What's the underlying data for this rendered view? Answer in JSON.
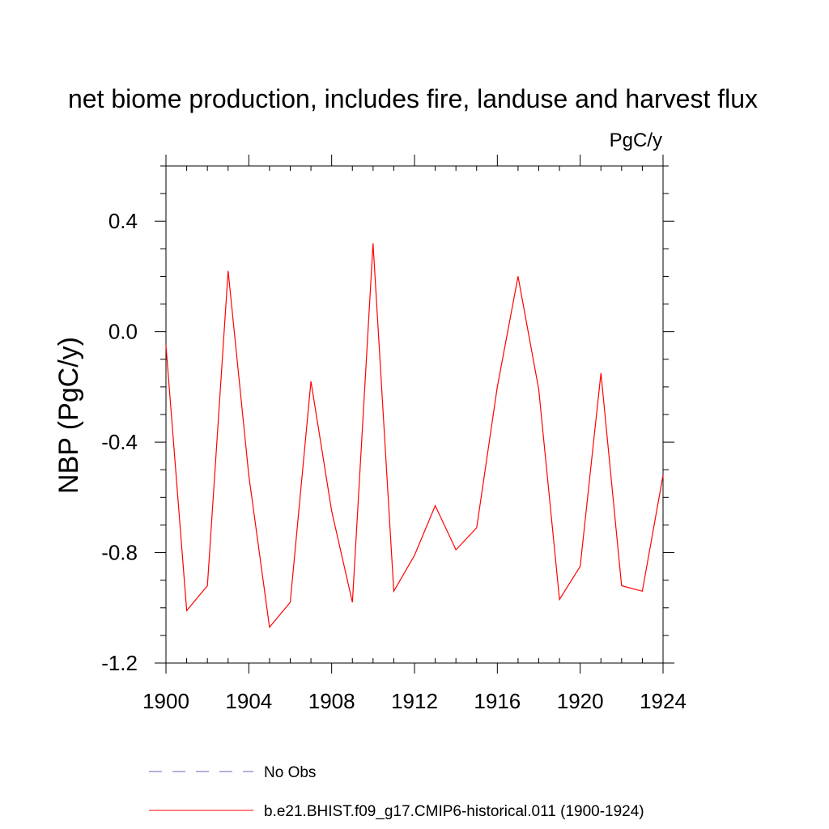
{
  "chart_data": {
    "type": "line",
    "title": "net biome production, includes fire, landuse and harvest flux",
    "units": "PgC/y",
    "ylabel": "NBP  (PgC/y)",
    "xlabel": "",
    "xlim": [
      1900,
      1924
    ],
    "ylim": [
      -1.2,
      0.6
    ],
    "x_ticks": [
      1900,
      1904,
      1908,
      1912,
      1916,
      1920,
      1924
    ],
    "x_tick_labels": [
      "1900",
      "1904",
      "1908",
      "1912",
      "1916",
      "1920",
      "1924"
    ],
    "y_ticks": [
      -1.2,
      -0.8,
      -0.4,
      0.0,
      0.4
    ],
    "y_tick_labels": [
      "-1.2",
      "-0.8",
      "-0.4",
      "0.0",
      "0.4"
    ],
    "grid": false,
    "legend_position": "bottom",
    "series": [
      {
        "name": "b.e21.BHIST.f09_g17.CMIP6-historical.011 (1900-1924)",
        "color": "#ff0000",
        "style": "solid",
        "x": [
          1900,
          1901,
          1902,
          1903,
          1904,
          1905,
          1906,
          1907,
          1908,
          1909,
          1910,
          1911,
          1912,
          1913,
          1914,
          1915,
          1916,
          1917,
          1918,
          1919,
          1920,
          1921,
          1922,
          1923,
          1924
        ],
        "values": [
          -0.05,
          -1.01,
          -0.92,
          0.22,
          -0.52,
          -1.07,
          -0.98,
          -0.18,
          -0.65,
          -0.98,
          0.32,
          -0.94,
          -0.81,
          -0.63,
          -0.79,
          -0.71,
          -0.2,
          0.2,
          -0.21,
          -0.97,
          -0.85,
          -0.15,
          -0.92,
          -0.94,
          -0.52
        ]
      }
    ],
    "legend": [
      {
        "label": "No Obs",
        "color": "#6666bb",
        "style": "dashed"
      },
      {
        "label": "b.e21.BHIST.f09_g17.CMIP6-historical.011 (1900-1924)",
        "color": "#ff0000",
        "style": "solid"
      }
    ]
  }
}
